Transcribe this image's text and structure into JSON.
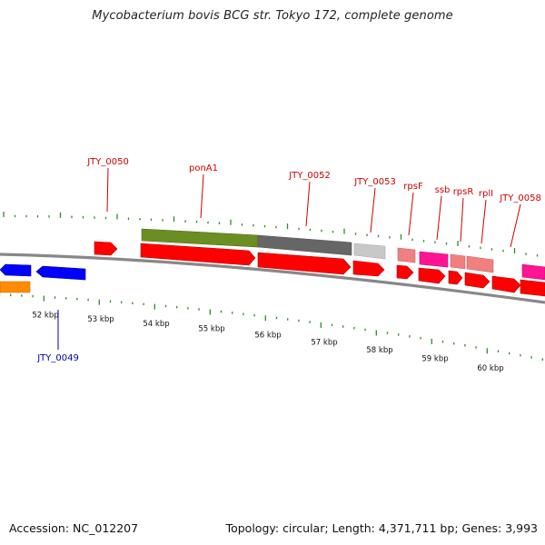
{
  "title": "Mycobacterium bovis BCG str. Tokyo 172, complete genome",
  "footer": {
    "accession_label": "Accession:",
    "accession": "NC_012207",
    "topology_label": "Topology:",
    "topology": "circular",
    "length_label": "Length:",
    "length": "4,371,711 bp",
    "genes_label": "Genes:",
    "genes": "3,993"
  },
  "colors": {
    "label_plus": "#cc0000",
    "label_minus": "#0000aa",
    "tick": "#2e8b2e",
    "backbone": "#888888",
    "cds": "#ff0000",
    "cds_minus": "#0000ff",
    "gene_olive": "#6b8e23",
    "gene_gray": "#666666",
    "gene_lightgray": "#c8c8c8",
    "gene_salmon": "#f08080",
    "gene_pink": "#ff1493",
    "gene_orange": "#ff8c00"
  },
  "scale": {
    "kbp_labels": [
      "52 kbp",
      "53 kbp",
      "54 kbp",
      "55 kbp",
      "56 kbp",
      "57 kbp",
      "58 kbp",
      "59 kbp",
      "60 kbp"
    ]
  },
  "gene_labels": [
    {
      "name": "JTY_0049",
      "strand": "minus"
    },
    {
      "name": "JTY_0050",
      "strand": "plus"
    },
    {
      "name": "ponA1",
      "strand": "plus"
    },
    {
      "name": "JTY_0052",
      "strand": "plus"
    },
    {
      "name": "JTY_0053",
      "strand": "plus"
    },
    {
      "name": "rpsF",
      "strand": "plus"
    },
    {
      "name": "ssb",
      "strand": "plus"
    },
    {
      "name": "rpsR",
      "strand": "plus"
    },
    {
      "name": "rplI",
      "strand": "plus"
    },
    {
      "name": "JTY_0058",
      "strand": "plus"
    }
  ]
}
